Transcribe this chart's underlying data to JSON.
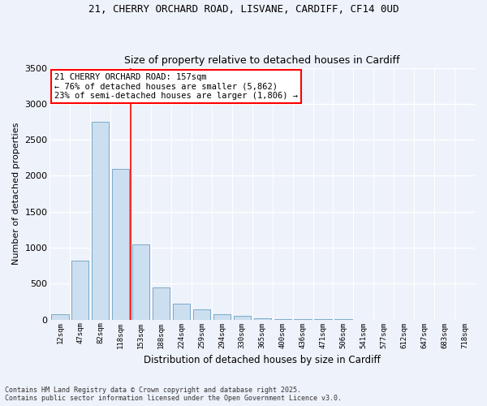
{
  "title_line1": "21, CHERRY ORCHARD ROAD, LISVANE, CARDIFF, CF14 0UD",
  "title_line2": "Size of property relative to detached houses in Cardiff",
  "xlabel": "Distribution of detached houses by size in Cardiff",
  "ylabel": "Number of detached properties",
  "categories": [
    "12sqm",
    "47sqm",
    "82sqm",
    "118sqm",
    "153sqm",
    "188sqm",
    "224sqm",
    "259sqm",
    "294sqm",
    "330sqm",
    "365sqm",
    "400sqm",
    "436sqm",
    "471sqm",
    "506sqm",
    "541sqm",
    "577sqm",
    "612sqm",
    "647sqm",
    "683sqm",
    "718sqm"
  ],
  "values": [
    75,
    825,
    2750,
    2100,
    1050,
    450,
    220,
    145,
    80,
    50,
    20,
    12,
    5,
    3,
    2,
    1,
    1,
    1,
    0,
    0,
    0
  ],
  "bar_color": "#ccdff0",
  "bar_edge_color": "#7aaac8",
  "annotation_text": "21 CHERRY ORCHARD ROAD: 157sqm\n← 76% of detached houses are smaller (5,862)\n23% of semi-detached houses are larger (1,806) →",
  "annotation_box_color": "white",
  "annotation_box_edge": "red",
  "red_line_index": 3.5,
  "ylim": [
    0,
    3500
  ],
  "yticks": [
    0,
    500,
    1000,
    1500,
    2000,
    2500,
    3000,
    3500
  ],
  "background_color": "#eef2fa",
  "grid_color": "white",
  "footer_line1": "Contains HM Land Registry data © Crown copyright and database right 2025.",
  "footer_line2": "Contains public sector information licensed under the Open Government Licence v3.0."
}
